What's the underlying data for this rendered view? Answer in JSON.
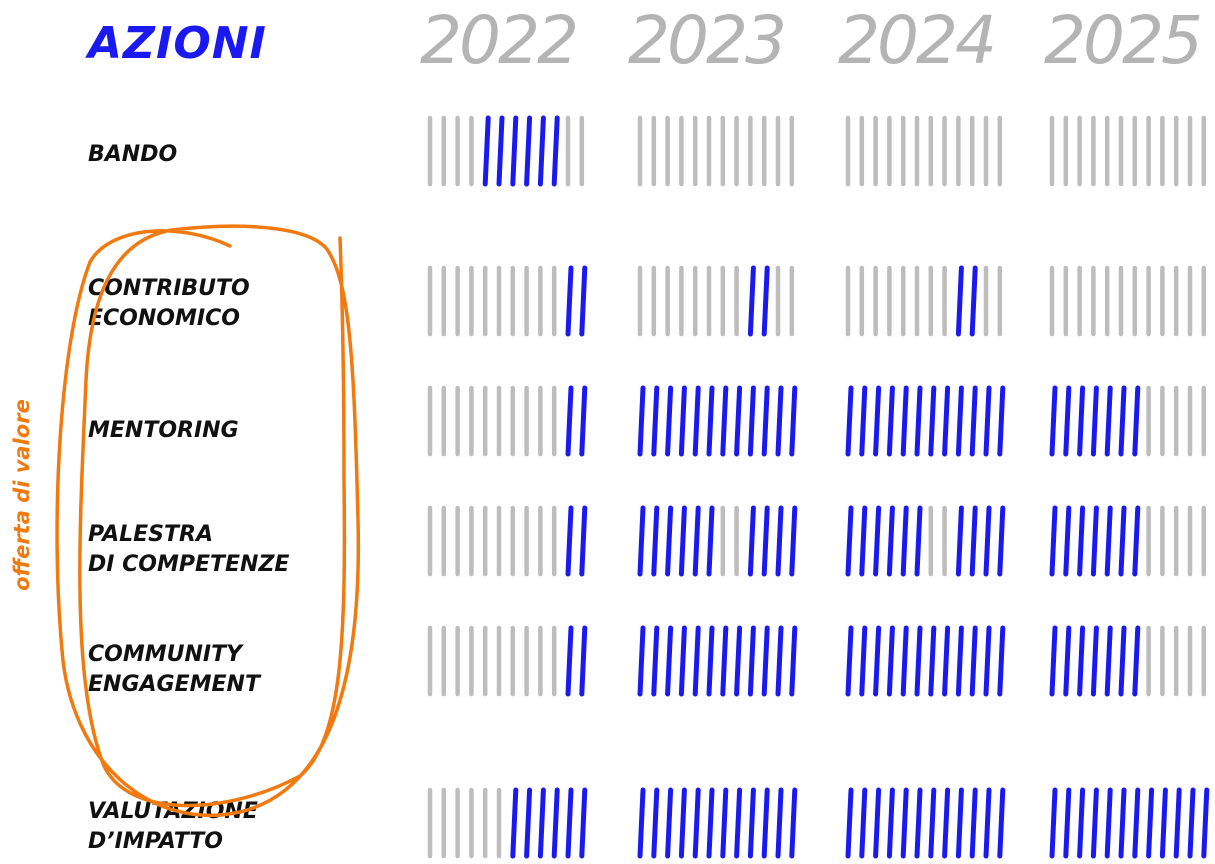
{
  "title": "AZIONI",
  "years": [
    "2022",
    "2023",
    "2024",
    "2025"
  ],
  "side_label": "offerta di valore",
  "colors": {
    "active": "#1a1af0",
    "inactive": "#bdbdbd",
    "accent": "#f07a10"
  },
  "rows": [
    {
      "label": "BANDO",
      "segments": [
        [
          0,
          0,
          0,
          0,
          1,
          1,
          1,
          1,
          1,
          1,
          0,
          0
        ],
        [
          0,
          0,
          0,
          0,
          0,
          0,
          0,
          0,
          0,
          0,
          0,
          0
        ],
        [
          0,
          0,
          0,
          0,
          0,
          0,
          0,
          0,
          0,
          0,
          0,
          0
        ],
        [
          0,
          0,
          0,
          0,
          0,
          0,
          0,
          0,
          0,
          0,
          0,
          0
        ]
      ]
    },
    {
      "label": "CONTRIBUTO\nECONOMICO",
      "segments": [
        [
          0,
          0,
          0,
          0,
          0,
          0,
          0,
          0,
          0,
          0,
          1,
          1
        ],
        [
          0,
          0,
          0,
          0,
          0,
          0,
          0,
          0,
          1,
          1,
          0,
          0
        ],
        [
          0,
          0,
          0,
          0,
          0,
          0,
          0,
          0,
          1,
          1,
          0,
          0
        ],
        [
          0,
          0,
          0,
          0,
          0,
          0,
          0,
          0,
          0,
          0,
          0,
          0
        ]
      ]
    },
    {
      "label": "MENTORING",
      "segments": [
        [
          0,
          0,
          0,
          0,
          0,
          0,
          0,
          0,
          0,
          0,
          1,
          1
        ],
        [
          1,
          1,
          1,
          1,
          1,
          1,
          1,
          1,
          1,
          1,
          1,
          1
        ],
        [
          1,
          1,
          1,
          1,
          1,
          1,
          1,
          1,
          1,
          1,
          1,
          1
        ],
        [
          1,
          1,
          1,
          1,
          1,
          1,
          1,
          0,
          0,
          0,
          0,
          0
        ]
      ]
    },
    {
      "label": "PALESTRA\nDI COMPETENZE",
      "segments": [
        [
          0,
          0,
          0,
          0,
          0,
          0,
          0,
          0,
          0,
          0,
          1,
          1
        ],
        [
          1,
          1,
          1,
          1,
          1,
          1,
          0,
          0,
          1,
          1,
          1,
          1
        ],
        [
          1,
          1,
          1,
          1,
          1,
          1,
          0,
          0,
          1,
          1,
          1,
          1
        ],
        [
          1,
          1,
          1,
          1,
          1,
          1,
          1,
          0,
          0,
          0,
          0,
          0
        ]
      ]
    },
    {
      "label": "COMMUNITY\nENGAGEMENT",
      "segments": [
        [
          0,
          0,
          0,
          0,
          0,
          0,
          0,
          0,
          0,
          0,
          1,
          1
        ],
        [
          1,
          1,
          1,
          1,
          1,
          1,
          1,
          1,
          1,
          1,
          1,
          1
        ],
        [
          1,
          1,
          1,
          1,
          1,
          1,
          1,
          1,
          1,
          1,
          1,
          1
        ],
        [
          1,
          1,
          1,
          1,
          1,
          1,
          1,
          0,
          0,
          0,
          0,
          0
        ]
      ]
    },
    {
      "label": "VALUTAZIONE\nD’IMPATTO",
      "segments": [
        [
          0,
          0,
          0,
          0,
          0,
          0,
          1,
          1,
          1,
          1,
          1,
          1
        ],
        [
          1,
          1,
          1,
          1,
          1,
          1,
          1,
          1,
          1,
          1,
          1,
          1
        ],
        [
          1,
          1,
          1,
          1,
          1,
          1,
          1,
          1,
          1,
          1,
          1,
          1
        ],
        [
          1,
          1,
          1,
          1,
          1,
          1,
          1,
          1,
          1,
          1,
          1,
          1
        ]
      ]
    }
  ]
}
